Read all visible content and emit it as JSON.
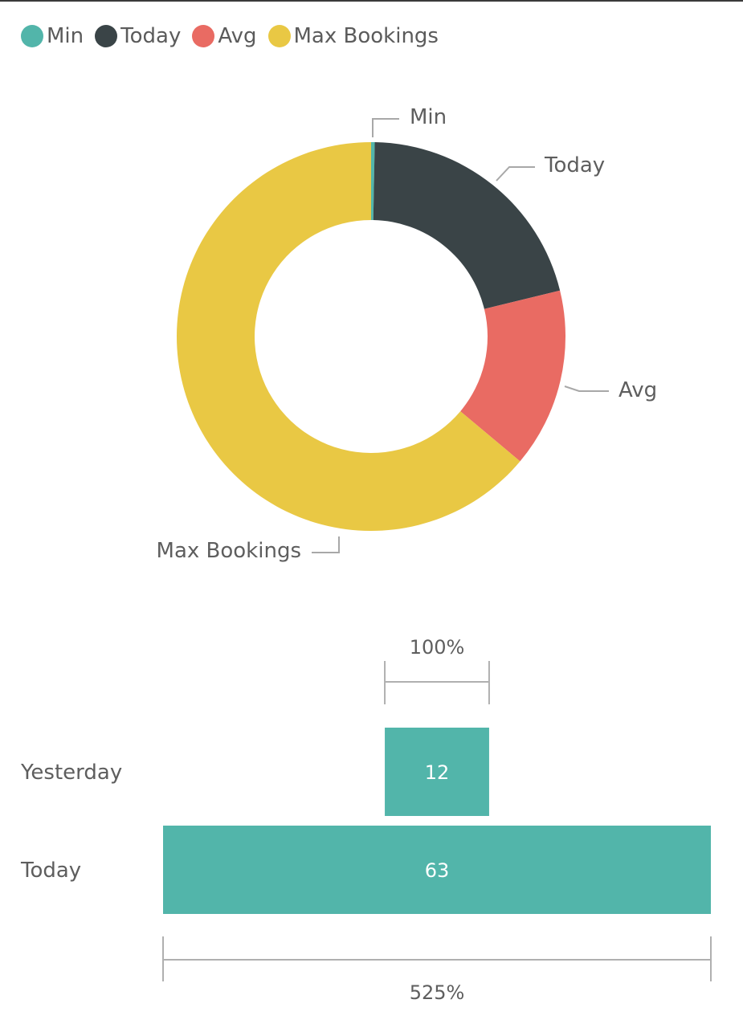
{
  "chart_data": [
    {
      "type": "pie",
      "style": "donut",
      "legend_position": "top-left",
      "slices": [
        {
          "label": "Min",
          "value": 0.3,
          "color": "#52B5AA"
        },
        {
          "label": "Today",
          "value": 20.9,
          "color": "#3A4447"
        },
        {
          "label": "Avg",
          "value": 14.9,
          "color": "#E96B63"
        },
        {
          "label": "Max Bookings",
          "value": 63.9,
          "color": "#E9C844"
        }
      ]
    },
    {
      "type": "bar",
      "orientation": "horizontal",
      "style": "funnel",
      "bar_color": "#52B5AA",
      "categories": [
        "Yesterday",
        "Today"
      ],
      "values": [
        12,
        63
      ],
      "percent_labels": [
        "100%",
        "525%"
      ]
    }
  ]
}
